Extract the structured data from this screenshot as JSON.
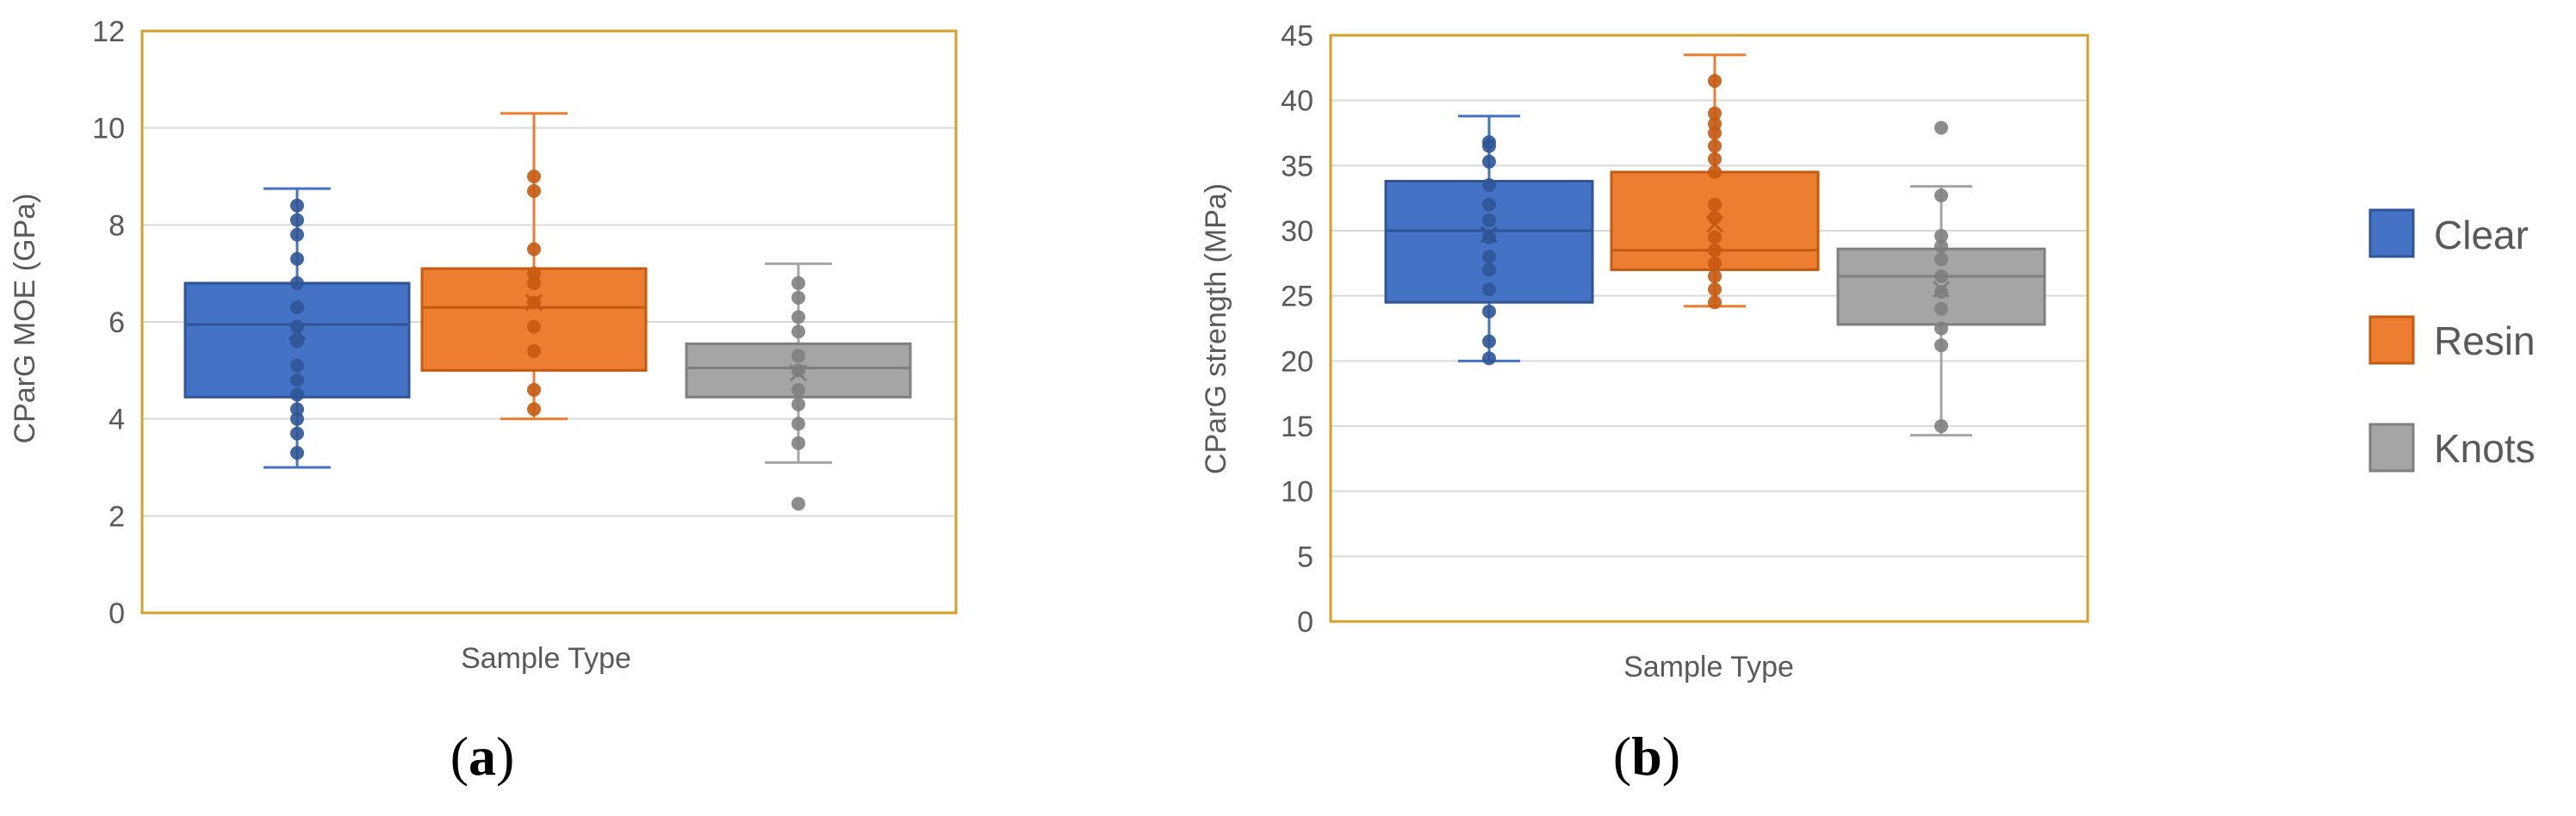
{
  "chart_data": [
    {
      "type": "box",
      "panel_label": "(a)",
      "panel_letter": "a",
      "title": "",
      "xlabel": "Sample Type",
      "ylabel": "CParG MOE (GPa)",
      "ylim": [
        0,
        12
      ],
      "yticks": [
        0,
        2,
        4,
        6,
        8,
        10,
        12
      ],
      "grid": true,
      "series": [
        {
          "name": "Clear",
          "color": "#4472C4",
          "edge": "#2F5597",
          "min": 3.0,
          "q1": 4.45,
          "median": 5.95,
          "q3": 6.8,
          "max": 8.75,
          "mean": 5.8,
          "points": [
            3.3,
            3.7,
            4.0,
            4.2,
            4.5,
            4.8,
            5.1,
            5.6,
            5.9,
            6.3,
            6.8,
            7.3,
            7.8,
            8.1,
            8.4
          ]
        },
        {
          "name": "Resin",
          "color": "#ED7D31",
          "edge": "#C55A11",
          "min": 4.0,
          "q1": 5.0,
          "median": 6.3,
          "q3": 7.1,
          "max": 10.3,
          "mean": 6.4,
          "points": [
            4.2,
            4.6,
            5.4,
            5.9,
            6.4,
            6.8,
            7.0,
            7.5,
            8.7,
            9.0
          ]
        },
        {
          "name": "Knots",
          "color": "#A5A5A5",
          "edge": "#7F7F7F",
          "min": 3.1,
          "q1": 4.45,
          "median": 5.05,
          "q3": 5.55,
          "max": 7.2,
          "mean": 4.95,
          "points": [
            2.25,
            3.5,
            3.9,
            4.3,
            4.6,
            5.0,
            5.3,
            5.8,
            6.1,
            6.5,
            6.8
          ]
        }
      ]
    },
    {
      "type": "box",
      "panel_label": "(b)",
      "panel_letter": "b",
      "title": "",
      "xlabel": "Sample Type",
      "ylabel": "CParG strength (MPa)",
      "ylim": [
        0,
        45
      ],
      "yticks": [
        0,
        5,
        10,
        15,
        20,
        25,
        30,
        35,
        40,
        45
      ],
      "grid": true,
      "series": [
        {
          "name": "Clear",
          "color": "#4472C4",
          "edge": "#2F5597",
          "min": 20.0,
          "q1": 24.5,
          "median": 30.0,
          "q3": 33.8,
          "max": 38.8,
          "mean": 29.7,
          "points": [
            20.2,
            21.5,
            23.8,
            25.5,
            27.0,
            28.0,
            29.5,
            30.8,
            32.0,
            33.5,
            35.3,
            36.5,
            36.8
          ]
        },
        {
          "name": "Resin",
          "color": "#ED7D31",
          "edge": "#C55A11",
          "min": 24.2,
          "q1": 27.0,
          "median": 28.5,
          "q3": 34.5,
          "max": 43.5,
          "mean": 30.5,
          "points": [
            24.5,
            25.5,
            26.5,
            27.5,
            28.5,
            29.5,
            31.0,
            32.0,
            34.5,
            35.5,
            36.5,
            37.5,
            38.2,
            39.0,
            41.5
          ]
        },
        {
          "name": "Knots",
          "color": "#A5A5A5",
          "edge": "#7F7F7F",
          "min": 14.3,
          "q1": 22.8,
          "median": 26.5,
          "q3": 28.6,
          "max": 33.4,
          "mean": 25.5,
          "points": [
            15.0,
            21.2,
            22.5,
            24.0,
            25.3,
            26.5,
            27.8,
            28.8,
            29.6,
            32.7,
            37.9
          ]
        }
      ]
    }
  ],
  "legend": {
    "placement": "right",
    "items": [
      {
        "label": "Clear",
        "color": "#4472C4"
      },
      {
        "label": "Resin",
        "color": "#ED7D31"
      },
      {
        "label": "Knots",
        "color": "#A5A5A5"
      }
    ]
  },
  "colors": {
    "frame": "#D4A02A",
    "grid": "#D9D9D9",
    "text": "#595959"
  }
}
